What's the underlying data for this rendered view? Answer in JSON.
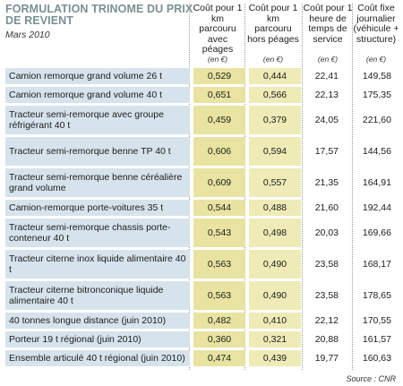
{
  "title": "FORMULATION TRINOME DU PRIX DE REVIENT",
  "subtitle": "Mars 2010",
  "columns": [
    {
      "header": "Coût pour 1 km parcouru avec péages",
      "unit": "(en €)"
    },
    {
      "header": "Coût pour 1 km parcouru hors péages",
      "unit": "(en €)"
    },
    {
      "header": "Coût pour 1 heure de temps de service",
      "unit": "(en €)"
    },
    {
      "header": "Coût fixe journalier (véhicule + structure)",
      "unit": "(en €)"
    }
  ],
  "rows": [
    {
      "label": "Camion remorque grand volume 26 t",
      "values": [
        "0,529",
        "0,444",
        "22,41",
        "149,58"
      ]
    },
    {
      "label": "Camion remorque grand volume 40 t",
      "values": [
        "0,651",
        "0,566",
        "22,13",
        "175,35"
      ]
    },
    {
      "label": "Tracteur semi-remorque avec groupe réfrigérant 40 t",
      "values": [
        "0,459",
        "0,379",
        "24,05",
        "221,60"
      ]
    },
    {
      "label": "Tracteur semi-remorque benne TP 40 t",
      "values": [
        "0,606",
        "0,594",
        "17,57",
        "144,56"
      ]
    },
    {
      "label": "Tracteur semi-remorque benne céréalière grand volume",
      "values": [
        "0,609",
        "0,557",
        "21,35",
        "164,91"
      ]
    },
    {
      "label": "Camion-remorque porte-voitures 35 t",
      "values": [
        "0,544",
        "0,488",
        "21,60",
        "192,44"
      ]
    },
    {
      "label": "Tracteur semi-remorque chassis porte-conteneur 40 t",
      "values": [
        "0,543",
        "0,498",
        "20,03",
        "169,66"
      ]
    },
    {
      "label": "Tracteur citerne inox liquide alimentaire 40 t",
      "values": [
        "0,563",
        "0,490",
        "23,58",
        "168,17"
      ]
    },
    {
      "label": "Tracteur citerne bitronconique liquide alimentaire 40 t",
      "values": [
        "0,563",
        "0,490",
        "23,58",
        "178,65"
      ]
    },
    {
      "label": "40 tonnes longue distance (juin 2010)",
      "values": [
        "0,482",
        "0,410",
        "22,12",
        "170,55"
      ]
    },
    {
      "label": "Porteur 19 t régional (juin 2010)",
      "values": [
        "0,360",
        "0,321",
        "20,88",
        "161,57"
      ]
    },
    {
      "label": "Ensemble articulé 40 t régional (juin 2010)",
      "values": [
        "0,474",
        "0,439",
        "19,77",
        "160,63"
      ]
    }
  ],
  "source": "Source : CNR"
}
